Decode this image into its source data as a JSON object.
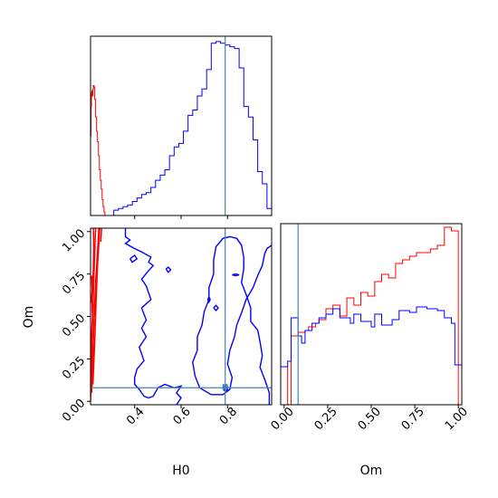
{
  "chart_data": {
    "type": "corner",
    "parameters": [
      "H0",
      "Om"
    ],
    "truths": {
      "H0": 0.79,
      "Om": 0.08
    },
    "colors": {
      "series_a": "#0000ff",
      "series_b": "#ff0000",
      "truth": "#4682b4"
    },
    "h0_marginal": {
      "type": "histogram",
      "xlim": [
        0.21,
        0.99
      ],
      "ylabel": "",
      "blue_edges": [
        0.21,
        0.31,
        0.33,
        0.35,
        0.37,
        0.39,
        0.41,
        0.43,
        0.45,
        0.47,
        0.49,
        0.51,
        0.53,
        0.55,
        0.57,
        0.59,
        0.61,
        0.63,
        0.65,
        0.67,
        0.69,
        0.71,
        0.73,
        0.75,
        0.77,
        0.79,
        0.81,
        0.83,
        0.85,
        0.87,
        0.89,
        0.91,
        0.93,
        0.95,
        0.97,
        0.99
      ],
      "blue_density": [
        0.0,
        0.03,
        0.04,
        0.05,
        0.06,
        0.08,
        0.1,
        0.12,
        0.13,
        0.16,
        0.2,
        0.23,
        0.26,
        0.34,
        0.39,
        0.41,
        0.48,
        0.57,
        0.6,
        0.68,
        0.72,
        0.83,
        0.98,
        0.99,
        0.98,
        0.97,
        0.96,
        0.95,
        0.84,
        0.62,
        0.56,
        0.43,
        0.25,
        0.18,
        0.04
      ],
      "red_x": [
        0.21,
        0.212,
        0.214,
        0.216,
        0.218,
        0.22,
        0.222,
        0.225,
        0.228,
        0.232,
        0.236,
        0.24,
        0.244,
        0.248,
        0.252,
        0.256,
        0.26,
        0.264,
        0.268,
        0.272
      ],
      "red_density": [
        0.45,
        0.62,
        0.7,
        0.71,
        0.68,
        0.72,
        0.74,
        0.73,
        0.66,
        0.56,
        0.48,
        0.42,
        0.34,
        0.26,
        0.2,
        0.15,
        0.09,
        0.05,
        0.02,
        0.0
      ]
    },
    "om_marginal": {
      "type": "histogram",
      "xlim": [
        -0.02,
        1.02
      ],
      "xlabel": "Om",
      "xticks": [
        "0.00",
        "0.25",
        "0.50",
        "0.75",
        "1.00"
      ],
      "edges": [
        -0.02,
        0.0,
        0.02,
        0.04,
        0.06,
        0.08,
        0.1,
        0.12,
        0.14,
        0.16,
        0.18,
        0.2,
        0.22,
        0.24,
        0.26,
        0.28,
        0.3,
        0.32,
        0.34,
        0.36,
        0.38,
        0.4,
        0.42,
        0.44,
        0.46,
        0.48,
        0.5,
        0.52,
        0.54,
        0.56,
        0.58,
        0.6,
        0.62,
        0.64,
        0.66,
        0.68,
        0.7,
        0.72,
        0.74,
        0.76,
        0.78,
        0.8,
        0.82,
        0.84,
        0.86,
        0.88,
        0.9,
        0.92,
        0.94,
        0.96,
        0.98,
        1.0,
        1.02
      ],
      "blue_density": [
        0.21,
        0.21,
        0.24,
        0.48,
        0.48,
        0.38,
        0.34,
        0.41,
        0.41,
        0.45,
        0.45,
        0.48,
        0.48,
        0.5,
        0.5,
        0.53,
        0.53,
        0.48,
        0.48,
        0.48,
        0.45,
        0.5,
        0.5,
        0.46,
        0.46,
        0.46,
        0.43,
        0.5,
        0.5,
        0.44,
        0.44,
        0.44,
        0.47,
        0.47,
        0.52,
        0.52,
        0.52,
        0.51,
        0.51,
        0.54,
        0.54,
        0.54,
        0.53,
        0.53,
        0.53,
        0.52,
        0.52,
        0.48,
        0.48,
        0.45,
        0.22,
        0.22
      ],
      "red_density": [
        0.21,
        0.21,
        0.0,
        0.38,
        0.38,
        0.4,
        0.4,
        0.41,
        0.43,
        0.43,
        0.45,
        0.47,
        0.47,
        0.53,
        0.53,
        0.55,
        0.55,
        0.49,
        0.49,
        0.59,
        0.59,
        0.55,
        0.55,
        0.62,
        0.62,
        0.6,
        0.6,
        0.68,
        0.68,
        0.72,
        0.72,
        0.7,
        0.7,
        0.78,
        0.78,
        0.8,
        0.8,
        0.82,
        0.82,
        0.84,
        0.84,
        0.84,
        0.84,
        0.86,
        0.86,
        0.88,
        0.88,
        0.98,
        0.98,
        0.96,
        0.96,
        0.0
      ]
    },
    "joint": {
      "type": "contour",
      "xlabel": "H0",
      "ylabel": "Om",
      "xlim": [
        0.21,
        0.99
      ],
      "ylim": [
        -0.02,
        1.02
      ],
      "xticks": [
        "0.4",
        "0.6",
        "0.8"
      ],
      "yticks": [
        "0.00",
        "0.25",
        "0.50",
        "0.75",
        "1.00"
      ],
      "xtick_values": [
        0.4,
        0.6,
        0.8
      ],
      "ytick_values": [
        0.0,
        0.25,
        0.5,
        0.75,
        1.0
      ],
      "blue_contours": [
        [
          [
            0.36,
            1.02
          ],
          [
            0.36,
            0.97
          ],
          [
            0.38,
            0.95
          ],
          [
            0.36,
            0.93
          ],
          [
            0.4,
            0.9
          ],
          [
            0.43,
            0.88
          ],
          [
            0.47,
            0.85
          ],
          [
            0.46,
            0.82
          ],
          [
            0.48,
            0.8
          ],
          [
            0.46,
            0.77
          ],
          [
            0.43,
            0.72
          ],
          [
            0.45,
            0.68
          ],
          [
            0.47,
            0.6
          ],
          [
            0.43,
            0.55
          ],
          [
            0.45,
            0.48
          ],
          [
            0.43,
            0.43
          ],
          [
            0.45,
            0.38
          ],
          [
            0.42,
            0.32
          ],
          [
            0.44,
            0.24
          ],
          [
            0.41,
            0.19
          ],
          [
            0.4,
            0.14
          ],
          [
            0.4,
            0.1
          ],
          [
            0.42,
            0.07
          ],
          [
            0.44,
            0.03
          ],
          [
            0.46,
            0.02
          ],
          [
            0.48,
            0.03
          ],
          [
            0.5,
            0.08
          ],
          [
            0.53,
            0.1
          ],
          [
            0.57,
            0.08
          ],
          [
            0.6,
            0.09
          ],
          [
            0.58,
            0.05
          ],
          [
            0.6,
            0.02
          ],
          [
            0.58,
            -0.02
          ]
        ],
        [
          [
            0.98,
            -0.02
          ],
          [
            0.98,
            0.05
          ],
          [
            0.97,
            0.09
          ],
          [
            0.96,
            0.13
          ],
          [
            0.94,
            0.2
          ],
          [
            0.95,
            0.27
          ],
          [
            0.94,
            0.35
          ],
          [
            0.93,
            0.42
          ],
          [
            0.9,
            0.47
          ],
          [
            0.9,
            0.55
          ],
          [
            0.88,
            0.63
          ],
          [
            0.86,
            0.7
          ],
          [
            0.87,
            0.78
          ],
          [
            0.87,
            0.85
          ],
          [
            0.86,
            0.92
          ],
          [
            0.84,
            0.96
          ],
          [
            0.81,
            0.97
          ],
          [
            0.78,
            0.96
          ],
          [
            0.75,
            0.91
          ],
          [
            0.74,
            0.83
          ],
          [
            0.74,
            0.75
          ],
          [
            0.72,
            0.67
          ],
          [
            0.72,
            0.6
          ],
          [
            0.7,
            0.53
          ],
          [
            0.69,
            0.45
          ],
          [
            0.67,
            0.38
          ],
          [
            0.67,
            0.3
          ],
          [
            0.65,
            0.23
          ],
          [
            0.66,
            0.15
          ],
          [
            0.68,
            0.08
          ],
          [
            0.73,
            0.04
          ],
          [
            0.78,
            0.04
          ],
          [
            0.81,
            0.07
          ],
          [
            0.82,
            0.14
          ],
          [
            0.8,
            0.22
          ],
          [
            0.81,
            0.3
          ],
          [
            0.83,
            0.38
          ],
          [
            0.84,
            0.45
          ],
          [
            0.86,
            0.52
          ],
          [
            0.88,
            0.6
          ],
          [
            0.91,
            0.67
          ],
          [
            0.93,
            0.74
          ],
          [
            0.95,
            0.8
          ],
          [
            0.96,
            0.87
          ],
          [
            0.97,
            0.9
          ],
          [
            0.99,
            0.92
          ]
        ],
        [
          [
            0.38,
            0.84
          ],
          [
            0.4,
            0.86
          ],
          [
            0.41,
            0.84
          ],
          [
            0.39,
            0.82
          ],
          [
            0.38,
            0.84
          ]
        ],
        [
          [
            0.535,
            0.78
          ],
          [
            0.545,
            0.79
          ],
          [
            0.555,
            0.775
          ],
          [
            0.545,
            0.76
          ],
          [
            0.535,
            0.78
          ]
        ],
        [
          [
            0.715,
            0.6
          ],
          [
            0.72,
            0.615
          ],
          [
            0.725,
            0.6
          ],
          [
            0.72,
            0.585
          ],
          [
            0.715,
            0.6
          ]
        ],
        [
          [
            0.74,
            0.55
          ],
          [
            0.75,
            0.565
          ],
          [
            0.76,
            0.55
          ],
          [
            0.75,
            0.535
          ],
          [
            0.74,
            0.55
          ]
        ],
        [
          [
            0.82,
            0.745
          ],
          [
            0.835,
            0.75
          ],
          [
            0.85,
            0.745
          ],
          [
            0.835,
            0.74
          ],
          [
            0.82,
            0.745
          ]
        ],
        [
          [
            0.785,
            0.085
          ],
          [
            0.8,
            0.085
          ],
          [
            0.8,
            0.065
          ],
          [
            0.785,
            0.065
          ],
          [
            0.785,
            0.085
          ]
        ]
      ],
      "red_contours": [
        [
          [
            0.21,
            0.0
          ],
          [
            0.213,
            0.15
          ],
          [
            0.216,
            0.35
          ],
          [
            0.22,
            0.55
          ],
          [
            0.224,
            0.72
          ],
          [
            0.228,
            0.88
          ],
          [
            0.232,
            1.02
          ]
        ],
        [
          [
            0.215,
            0.05
          ],
          [
            0.22,
            0.25
          ],
          [
            0.225,
            0.48
          ],
          [
            0.232,
            0.7
          ],
          [
            0.24,
            0.88
          ],
          [
            0.246,
            1.02
          ]
        ],
        [
          [
            0.212,
            0.08
          ],
          [
            0.215,
            0.2
          ],
          [
            0.213,
            0.35
          ],
          [
            0.218,
            0.5
          ],
          [
            0.216,
            0.62
          ],
          [
            0.222,
            0.78
          ],
          [
            0.224,
            0.92
          ],
          [
            0.222,
            1.02
          ]
        ],
        [
          [
            0.22,
            0.1
          ],
          [
            0.228,
            0.35
          ],
          [
            0.234,
            0.6
          ],
          [
            0.24,
            0.8
          ],
          [
            0.25,
            1.02
          ]
        ],
        [
          [
            0.218,
            0.3
          ],
          [
            0.22,
            0.34
          ],
          [
            0.222,
            0.3
          ],
          [
            0.22,
            0.26
          ],
          [
            0.218,
            0.3
          ]
        ],
        [
          [
            0.226,
            0.55
          ],
          [
            0.229,
            0.6
          ],
          [
            0.232,
            0.55
          ],
          [
            0.229,
            0.5
          ],
          [
            0.226,
            0.55
          ]
        ],
        [
          [
            0.254,
            0.94
          ],
          [
            0.258,
            1.02
          ]
        ],
        [
          [
            0.214,
            0.58
          ],
          [
            0.217,
            0.66
          ],
          [
            0.215,
            0.74
          ]
        ]
      ]
    }
  }
}
